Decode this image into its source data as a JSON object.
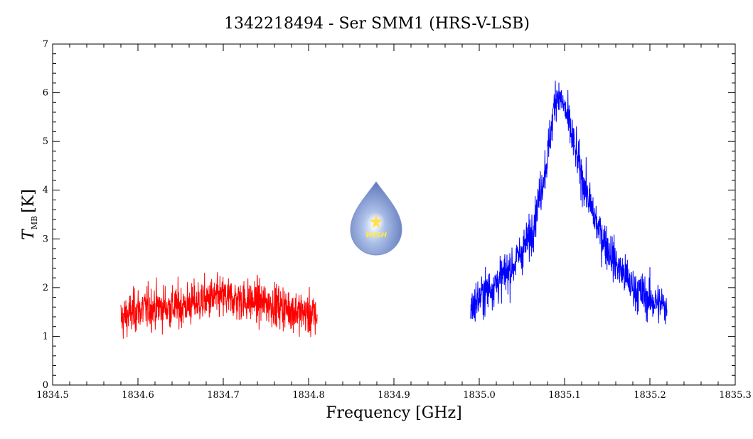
{
  "chart_data": {
    "type": "line",
    "title": "1342218494 - Ser SMM1 (HRS-V-LSB)",
    "xlabel": "Frequency [GHz]",
    "ylabel": {
      "symbol": "T",
      "subscript": "MB",
      "unit": "[K]"
    },
    "xlim": [
      1834.5,
      1835.3
    ],
    "ylim": [
      0,
      7
    ],
    "x_ticks": [
      "1834.5",
      "1834.6",
      "1834.7",
      "1834.8",
      "1834.9",
      "1835.0",
      "1835.1",
      "1835.2",
      "1835.3"
    ],
    "y_ticks": [
      "0",
      "1",
      "2",
      "3",
      "4",
      "5",
      "6",
      "7"
    ],
    "grid": false,
    "series": [
      {
        "color": "#ff0000",
        "x": [
          1834.58,
          1834.6,
          1834.62,
          1834.64,
          1834.66,
          1834.68,
          1834.7,
          1834.72,
          1834.74,
          1834.76,
          1834.78,
          1834.8,
          1834.81
        ],
        "y": [
          1.35,
          1.55,
          1.6,
          1.6,
          1.65,
          1.75,
          1.8,
          1.75,
          1.7,
          1.65,
          1.55,
          1.45,
          1.4
        ]
      },
      {
        "color": "#0000ff",
        "x": [
          1834.99,
          1835.0,
          1835.02,
          1835.04,
          1835.06,
          1835.07,
          1835.08,
          1835.09,
          1835.1,
          1835.11,
          1835.12,
          1835.13,
          1835.14,
          1835.16,
          1835.18,
          1835.2,
          1835.22
        ],
        "y": [
          1.55,
          1.8,
          2.1,
          2.45,
          3.05,
          3.8,
          4.7,
          6.0,
          5.7,
          5.0,
          4.3,
          3.7,
          3.2,
          2.5,
          2.0,
          1.75,
          1.6
        ]
      }
    ],
    "logo": {
      "text": "WISH"
    }
  }
}
